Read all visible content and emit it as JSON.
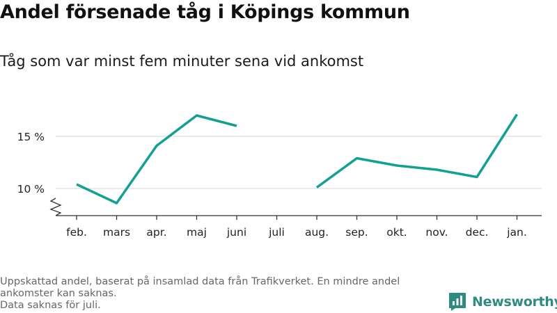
{
  "title": "Andel försenade tåg i Köpings kommun",
  "subtitle": "Tåg som var minst fem minuter sena vid ankomst",
  "footnote": {
    "line1": "Uppskattad andel, baserat på insamlad data från Trafikverket. En mindre andel",
    "line2": "ankomster kan saknas.",
    "line3": "Data saknas för juli."
  },
  "brand": {
    "name": "Newsworthy",
    "icon": "newsworthy-logo-icon",
    "color": "#2f8b80"
  },
  "colors": {
    "line": "#12a095",
    "grid": "#dddddd",
    "axis": "#333333"
  },
  "chart_data": {
    "type": "line",
    "categories": [
      "feb.",
      "mars",
      "apr.",
      "maj",
      "juni",
      "juli",
      "aug.",
      "sep.",
      "okt.",
      "nov.",
      "dec.",
      "jan."
    ],
    "series": [
      {
        "values": [
          10.4,
          8.6,
          14.1,
          17.0,
          16.0,
          null,
          10.1,
          12.9,
          12.2,
          11.8,
          11.1,
          17.1
        ]
      }
    ],
    "y_ticks": [
      {
        "value": 10,
        "label": "10 %"
      },
      {
        "value": 15,
        "label": "15 %"
      }
    ],
    "ylim": [
      7.5,
      19
    ],
    "y_axis_broken": true,
    "grid": true,
    "xlabel": "",
    "ylabel": ""
  }
}
